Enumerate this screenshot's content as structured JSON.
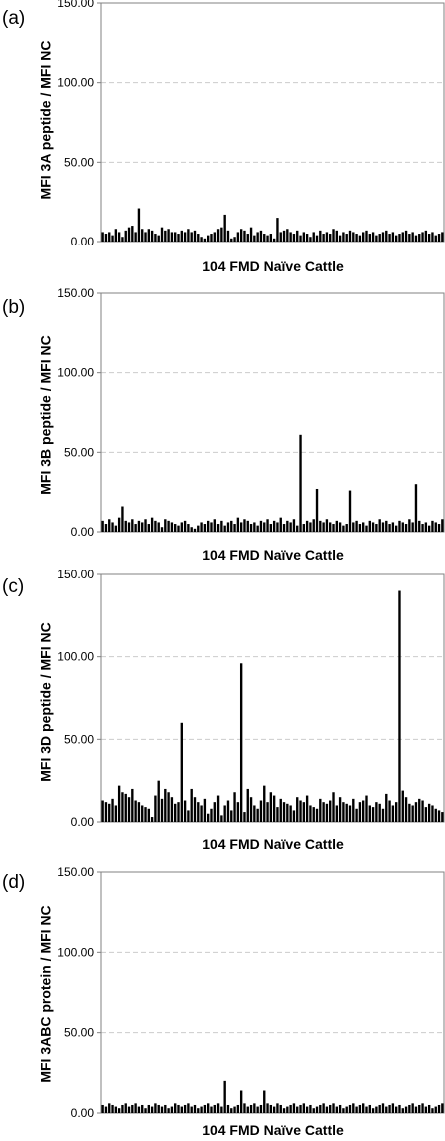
{
  "chart_data": [
    {
      "type": "bar",
      "panel_label": "(a)",
      "title": "",
      "xlabel": "104 FMD Naïve Cattle",
      "ylabel": "MFI 3A peptide / MFI NC",
      "ylim": [
        0,
        150
      ],
      "yticks": [
        "0.00",
        "50.00",
        "100.00",
        "150.00"
      ],
      "grid": true,
      "values": [
        6,
        5,
        6,
        4,
        8,
        6,
        3,
        7,
        9,
        10,
        6,
        21,
        8,
        6,
        8,
        7,
        5,
        4,
        9,
        7,
        8,
        6,
        6,
        5,
        7,
        6,
        8,
        6,
        7,
        5,
        3,
        2,
        4,
        5,
        6,
        8,
        9,
        17,
        7,
        2,
        3,
        6,
        8,
        7,
        5,
        9,
        4,
        6,
        7,
        5,
        4,
        5,
        2,
        15,
        6,
        7,
        8,
        6,
        5,
        7,
        4,
        6,
        5,
        3,
        6,
        4,
        7,
        5,
        6,
        5,
        8,
        7,
        4,
        6,
        5,
        7,
        6,
        5,
        4,
        6,
        7,
        5,
        6,
        4,
        5,
        6,
        7,
        5,
        6,
        4,
        5,
        6,
        7,
        5,
        6,
        4,
        5,
        6,
        7,
        5,
        6,
        4,
        5,
        6
      ]
    },
    {
      "type": "bar",
      "panel_label": "(b)",
      "title": "",
      "xlabel": "104 FMD Naïve Cattle",
      "ylabel": "MFI 3B peptide / MFI NC",
      "ylim": [
        0,
        150
      ],
      "yticks": [
        "0.00",
        "50.00",
        "100.00",
        "150.00"
      ],
      "grid": true,
      "values": [
        7,
        5,
        8,
        6,
        4,
        9,
        16,
        7,
        6,
        8,
        5,
        7,
        6,
        8,
        5,
        9,
        7,
        6,
        3,
        8,
        7,
        6,
        5,
        4,
        6,
        7,
        5,
        3,
        2,
        4,
        6,
        5,
        7,
        6,
        8,
        5,
        7,
        4,
        6,
        7,
        5,
        9,
        6,
        8,
        7,
        5,
        6,
        4,
        7,
        6,
        8,
        5,
        7,
        6,
        9,
        5,
        7,
        6,
        8,
        4,
        61,
        5,
        7,
        6,
        8,
        27,
        7,
        6,
        8,
        6,
        5,
        7,
        6,
        4,
        5,
        26,
        6,
        7,
        5,
        6,
        4,
        7,
        6,
        5,
        8,
        6,
        7,
        5,
        6,
        4,
        7,
        6,
        5,
        8,
        6,
        30,
        7,
        5,
        6,
        4,
        7,
        6,
        5,
        8
      ]
    },
    {
      "type": "bar",
      "panel_label": "(c)",
      "title": "",
      "xlabel": "104 FMD Naïve Cattle",
      "ylabel": "MFI 3D peptide / MFI NC",
      "ylim": [
        0,
        150
      ],
      "yticks": [
        "0.00",
        "50.00",
        "100.00",
        "150.00"
      ],
      "grid": true,
      "values": [
        13,
        12,
        11,
        14,
        10,
        22,
        18,
        17,
        15,
        20,
        13,
        12,
        10,
        9,
        8,
        3,
        16,
        25,
        14,
        20,
        18,
        15,
        11,
        12,
        60,
        13,
        7,
        20,
        15,
        12,
        10,
        14,
        5,
        8,
        12,
        16,
        4,
        10,
        13,
        7,
        18,
        12,
        96,
        6,
        20,
        15,
        10,
        8,
        13,
        22,
        12,
        18,
        16,
        9,
        14,
        12,
        11,
        10,
        7,
        15,
        13,
        12,
        16,
        10,
        9,
        8,
        14,
        12,
        11,
        13,
        18,
        10,
        15,
        12,
        11,
        10,
        14,
        8,
        12,
        13,
        16,
        10,
        9,
        12,
        11,
        8,
        17,
        13,
        10,
        12,
        140,
        19,
        15,
        11,
        10,
        12,
        14,
        13,
        9,
        11,
        10,
        8,
        7,
        6
      ]
    },
    {
      "type": "bar",
      "panel_label": "(d)",
      "title": "",
      "xlabel": "104 FMD Naïve Cattle",
      "ylabel": "MFI 3ABC protein / MFI NC",
      "ylim": [
        0,
        150
      ],
      "yticks": [
        "0.00",
        "50.00",
        "100.00",
        "150.00"
      ],
      "grid": true,
      "values": [
        5,
        4,
        6,
        5,
        4,
        3,
        5,
        6,
        4,
        5,
        6,
        4,
        5,
        3,
        5,
        4,
        6,
        5,
        4,
        5,
        3,
        4,
        6,
        5,
        4,
        5,
        6,
        4,
        5,
        3,
        4,
        5,
        6,
        4,
        5,
        6,
        4,
        20,
        5,
        3,
        4,
        5,
        14,
        6,
        4,
        5,
        6,
        4,
        5,
        14,
        6,
        5,
        4,
        6,
        5,
        3,
        4,
        5,
        6,
        4,
        5,
        6,
        4,
        5,
        3,
        4,
        5,
        6,
        4,
        5,
        6,
        4,
        5,
        3,
        4,
        5,
        6,
        4,
        5,
        6,
        4,
        5,
        3,
        4,
        5,
        6,
        4,
        5,
        6,
        4,
        5,
        3,
        4,
        5,
        6,
        4,
        5,
        6,
        4,
        5,
        3,
        4,
        5,
        6
      ]
    }
  ],
  "colors": {
    "bar": "#000000",
    "grid": "#cccccc",
    "axis": "#808080",
    "text": "#000000"
  }
}
